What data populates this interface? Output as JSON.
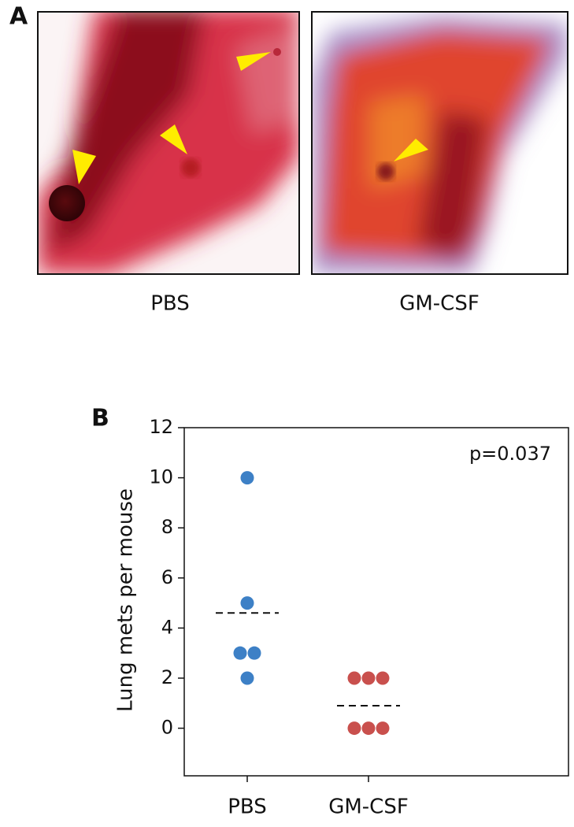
{
  "panel_a": {
    "label": "A",
    "images": [
      {
        "caption": "PBS"
      },
      {
        "caption": "GM-CSF"
      }
    ]
  },
  "chart_data": {
    "type": "strip",
    "panel_label": "B",
    "y_label": "Lung mets per mouse",
    "annotation": "p=0.037",
    "categories": [
      "PBS",
      "GM-CSF"
    ],
    "series": [
      {
        "color": "#3d80c6",
        "values": [
          10,
          5,
          3,
          3,
          2
        ],
        "mean": 4.6
      },
      {
        "color": "#c9504d",
        "values": [
          2,
          2,
          2,
          0,
          0,
          0
        ],
        "mean": 0.9
      }
    ],
    "ylim": [
      -1.9,
      12
    ],
    "yticks": [
      0,
      2,
      4,
      6,
      8,
      10,
      12
    ]
  }
}
